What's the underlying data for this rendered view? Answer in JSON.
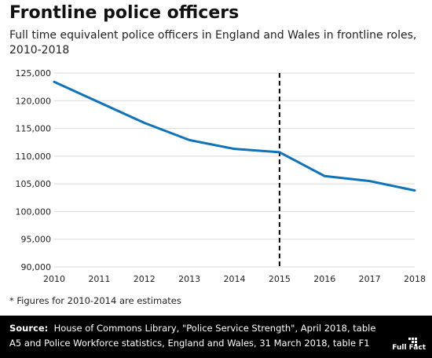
{
  "header": {
    "title": "Frontline police officers",
    "subtitle": "Full time equivalent police officers in England and Wales in frontline roles, 2010-2018"
  },
  "chart_data": {
    "type": "line",
    "x": [
      2010,
      2011,
      2012,
      2013,
      2014,
      2015,
      2016,
      2017,
      2018
    ],
    "series": [
      {
        "values": [
          123400,
          119700,
          116000,
          112900,
          111300,
          110700,
          106400,
          105500,
          103800
        ]
      }
    ],
    "x_ticks": [
      "2010",
      "2011",
      "2012",
      "2013",
      "2014",
      "2015",
      "2016",
      "2017",
      "2018"
    ],
    "y_ticks": [
      "90,000",
      "95,000",
      "100,000",
      "105,000",
      "110,000",
      "115,000",
      "120,000",
      "125,000"
    ],
    "ylim": [
      90000,
      125000
    ],
    "xlim": [
      2010,
      2018
    ],
    "grid": "horizontal",
    "reference_line_x": 2015,
    "colors": {
      "line": "#0e73b9",
      "grid": "#d9d9d9",
      "reference": "#000000"
    }
  },
  "footnote": "* Figures for 2010-2014 are estimates",
  "source": {
    "prefix": "Source:",
    "text": "House of Commons Library, \"Police Service Strength\", April 2018, table A5 and Police Workforce statistics, England and Wales, 31 March 2018, table F1"
  },
  "logo": {
    "text": "Full Fact"
  }
}
